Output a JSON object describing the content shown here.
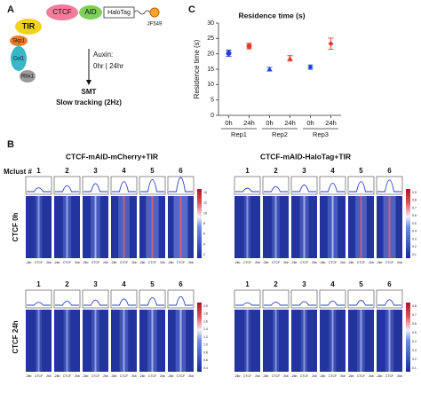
{
  "panel_a": {
    "letter": "A",
    "tir": "TIR",
    "skp1": "Skp1",
    "cul1": "Cul1",
    "rbx1": "Rbx1",
    "ctcf": "CTCF",
    "aid": "AID",
    "halotag": "HaloTag",
    "dye": "JF549",
    "auxin": "Auxin:",
    "times": "0hr | 24hr",
    "smt": "SMT",
    "tracking": "Slow tracking (2Hz)"
  },
  "panel_b": {
    "letter": "B",
    "left_title": "CTCF-mAID-mCherry+TIR",
    "right_title": "CTCF-mAID-HaloTag+TIR",
    "mclust": "Mclust #",
    "clusters": [
      "1",
      "2",
      "3",
      "4",
      "5",
      "6"
    ],
    "row_labels": [
      "CTCF 0h",
      "CTCF 24h"
    ],
    "x_labels": [
      "-2kb",
      "CTCF",
      "2kb"
    ],
    "colorbar_ticks": [
      [
        "14",
        "12",
        "10",
        "8",
        "6",
        "4",
        "2"
      ],
      [
        "0.9",
        "0.8",
        "0.7",
        "0.6",
        "0.5",
        "0.4",
        "0.3",
        "0.2",
        "0.1"
      ],
      [
        "2.0",
        "1.8",
        "1.6",
        "1.4",
        "1.2",
        "1.0",
        "0.8",
        "0.6",
        "0.4"
      ],
      [
        "0.8",
        "0.7",
        "0.6",
        "0.5",
        "0.4",
        "0.3",
        "0.2",
        "0.1"
      ]
    ]
  },
  "chart_data": {
    "type": "point",
    "letter": "C",
    "title": "Residence time (s)",
    "y_label": "Residence time (s)",
    "categories": [
      "0h",
      "24h",
      "0h",
      "24h",
      "0h",
      "24h"
    ],
    "groups": [
      "Rep1",
      "Rep2",
      "Rep3"
    ],
    "values": [
      20.2,
      22.5,
      15.0,
      18.5,
      15.7,
      23.3
    ],
    "errors": [
      1.0,
      0.9,
      0.6,
      0.9,
      0.7,
      1.8
    ],
    "colors": [
      "#1f3fd6",
      "#e53a2a",
      "#1f3fd6",
      "#e53a2a",
      "#1f3fd6",
      "#e53a2a"
    ],
    "markers": [
      "circle",
      "circle",
      "triangle",
      "triangle",
      "diamond",
      "diamond"
    ],
    "ylim": [
      0,
      30
    ],
    "yticks": [
      0,
      5,
      10,
      15,
      20,
      25,
      30
    ]
  }
}
